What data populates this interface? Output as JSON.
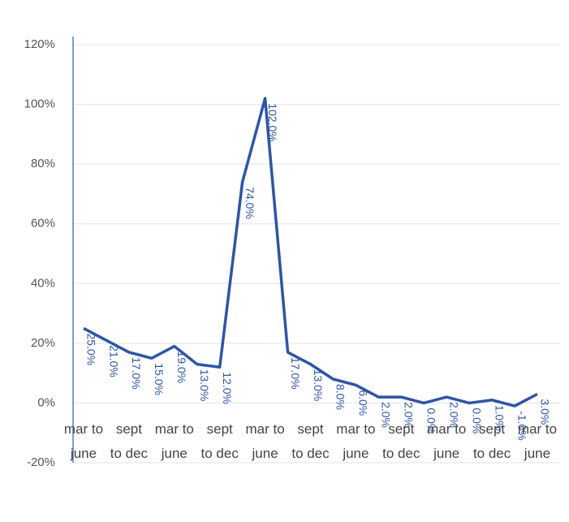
{
  "chart_data": {
    "type": "line",
    "categories": [
      "mar to june",
      null,
      "sept to dec",
      null,
      "mar to june",
      null,
      "sept to dec",
      null,
      "mar to june",
      null,
      "sept to dec",
      null,
      "mar to june",
      null,
      "sept to dec",
      null,
      "mar to june",
      null,
      "sept to dec",
      null,
      "mar to june"
    ],
    "series": [
      {
        "color": "#2e55a5",
        "values": [
          25,
          21,
          17,
          15,
          19,
          13,
          12,
          74,
          102,
          17,
          13,
          8,
          6,
          2,
          2,
          0,
          2,
          0,
          1,
          -1,
          3
        ],
        "value_labels": [
          "25.0%",
          "21.0%",
          "17.0%",
          "15.0%",
          "19.0%",
          "13.0%",
          "12.0%",
          "74.0%",
          "102.0%",
          "17.0%",
          "13.0%",
          "8.0%",
          "6.0%",
          "2.0%",
          "2.0%",
          "0.0%",
          "2.0%",
          "0.0%",
          "1.0%",
          "-1.0%",
          "3.0%"
        ]
      }
    ],
    "ylim": [
      -20,
      120
    ],
    "yticks": [
      {
        "value": -20,
        "label": "-20%"
      },
      {
        "value": 0,
        "label": "0%"
      },
      {
        "value": 20,
        "label": "20%"
      },
      {
        "value": 40,
        "label": "40%"
      },
      {
        "value": 60,
        "label": "60%"
      },
      {
        "value": 80,
        "label": "80%"
      },
      {
        "value": 100,
        "label": "100%"
      },
      {
        "value": 120,
        "label": "120%"
      }
    ],
    "grid": true
  }
}
